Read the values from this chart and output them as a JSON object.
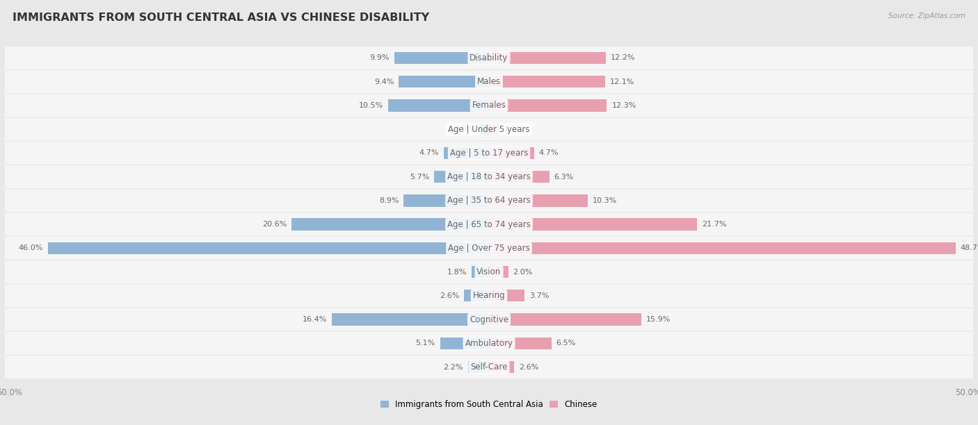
{
  "title": "IMMIGRANTS FROM SOUTH CENTRAL ASIA VS CHINESE DISABILITY",
  "source": "Source: ZipAtlas.com",
  "categories": [
    "Disability",
    "Males",
    "Females",
    "Age | Under 5 years",
    "Age | 5 to 17 years",
    "Age | 18 to 34 years",
    "Age | 35 to 64 years",
    "Age | 65 to 74 years",
    "Age | Over 75 years",
    "Vision",
    "Hearing",
    "Cognitive",
    "Ambulatory",
    "Self-Care"
  ],
  "left_values": [
    9.9,
    9.4,
    10.5,
    1.0,
    4.7,
    5.7,
    8.9,
    20.6,
    46.0,
    1.8,
    2.6,
    16.4,
    5.1,
    2.2
  ],
  "right_values": [
    12.2,
    12.1,
    12.3,
    1.1,
    4.7,
    6.3,
    10.3,
    21.7,
    48.7,
    2.0,
    3.7,
    15.9,
    6.5,
    2.6
  ],
  "left_color": "#92b4d4",
  "right_color": "#e8a0b0",
  "axis_max": 50.0,
  "legend_left": "Immigrants from South Central Asia",
  "legend_right": "Chinese",
  "bg_color": "#e8e8e8",
  "bar_bg_color": "#f5f5f5",
  "title_fontsize": 11.5,
  "label_fontsize": 8.5,
  "value_fontsize": 8,
  "axis_label_fontsize": 8.5
}
